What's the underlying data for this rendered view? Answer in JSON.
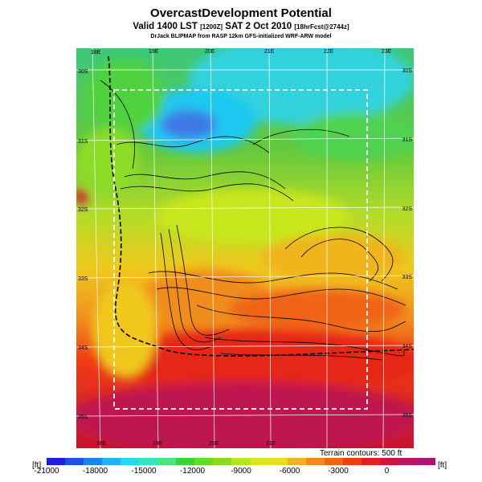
{
  "header": {
    "title": "OvercastDevelopment Potential",
    "subtitle": "Valid 1400 LST",
    "run_code": "[1200Z]",
    "date": "SAT 2 Oct 2010",
    "forecast": "[18hrFcst@2744z]",
    "credit": "DrJack BLIPMAP from RASP 12km GFS-initialized WRF-ARW model"
  },
  "map": {
    "lon_ticks_top": [
      "18E",
      "19E",
      "20E",
      "21E",
      "22E",
      "23E"
    ],
    "lon_ticks_bottom": [
      "18E",
      "19E",
      "20E",
      "21E"
    ],
    "lat_ticks_left": [
      "30S",
      "31S",
      "32S",
      "33S",
      "34S",
      "35S"
    ],
    "lat_ticks_right": [
      "30S",
      "31S",
      "32S",
      "33S",
      "34S",
      "35S"
    ],
    "terrain_note": "Terrain contours: 500 ft"
  },
  "colorbar": {
    "unit": "[ft]",
    "labels": [
      "-21000",
      "-18000",
      "-15000",
      "-12000",
      "-9000",
      "-6000",
      "-3000",
      "0"
    ],
    "min": -21000,
    "max": 3000,
    "colors": [
      "#1e1ee6",
      "#1e50e6",
      "#1e82f0",
      "#1eb4f0",
      "#1edcf0",
      "#32e6be",
      "#46e678",
      "#3cd23c",
      "#64dc28",
      "#8cdc1e",
      "#b4e61e",
      "#dce61e",
      "#f0dc1e",
      "#f0b41e",
      "#f08c1e",
      "#f06414",
      "#f03c14",
      "#e61e1e",
      "#d2143c",
      "#be1464",
      "#aa1478"
    ]
  }
}
